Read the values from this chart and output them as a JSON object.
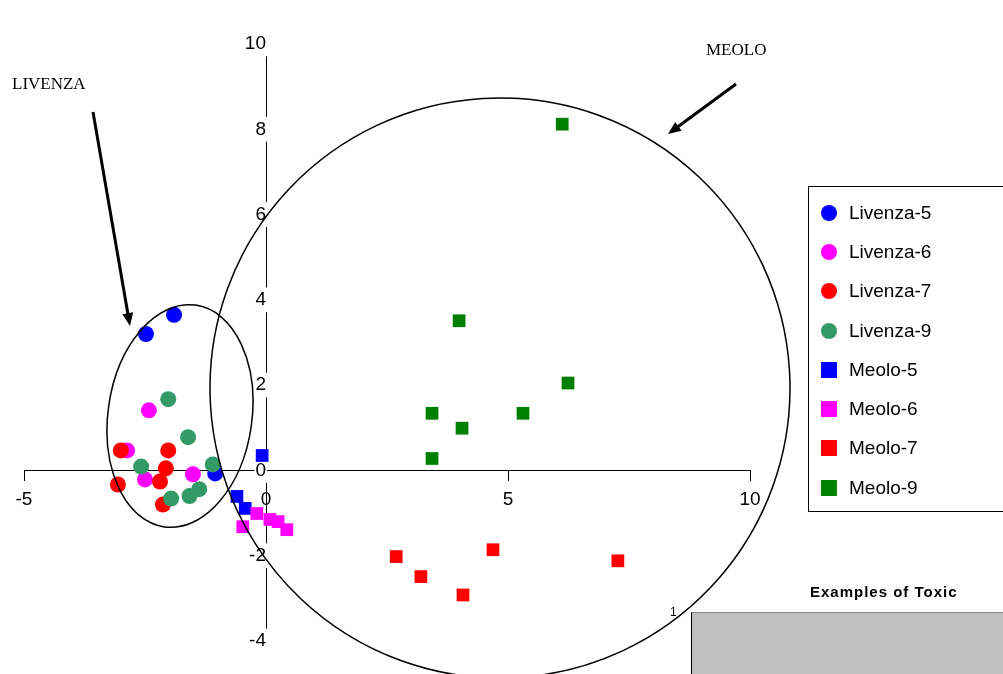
{
  "chart_data": [
    {
      "type": "scatter",
      "xlim": [
        -5,
        10
      ],
      "ylim": [
        -4,
        10
      ],
      "xticks": [
        -5,
        0,
        5,
        10
      ],
      "yticks": [
        -4,
        -2,
        0,
        2,
        4,
        6,
        8,
        10
      ],
      "grid": false,
      "legend": "right",
      "annotations": [
        "LIVENZA",
        "MEOLO"
      ],
      "series": [
        {
          "name": "Livenza-5",
          "color": "#0000ff",
          "marker": "circle",
          "x": [
            -2.48,
            -1.9,
            -1.05
          ],
          "values": [
            3.2,
            3.65,
            -0.07
          ]
        },
        {
          "name": "Livenza-6",
          "color": "#ff00ff",
          "marker": "circle",
          "x": [
            -2.42,
            -2.87,
            -2.5,
            -1.51
          ],
          "values": [
            1.41,
            0.47,
            -0.21,
            -0.09
          ]
        },
        {
          "name": "Livenza-7",
          "color": "#ff0000",
          "marker": "circle",
          "x": [
            -3.0,
            -2.02,
            -3.06,
            -2.07,
            -2.19,
            -2.13
          ],
          "values": [
            0.47,
            0.47,
            -0.33,
            0.05,
            -0.26,
            -0.8
          ]
        },
        {
          "name": "Livenza-9",
          "color": "#339966",
          "marker": "circle",
          "x": [
            -2.02,
            -1.61,
            -2.58,
            -1.1,
            -1.96,
            -1.38,
            -1.58
          ],
          "values": [
            1.67,
            0.78,
            0.09,
            0.14,
            -0.66,
            -0.44,
            -0.6
          ]
        },
        {
          "name": "Meolo-5",
          "color": "#0000ff",
          "marker": "square",
          "x": [
            -0.08,
            -0.6,
            -0.43
          ],
          "values": [
            0.35,
            -0.61,
            -0.89
          ]
        },
        {
          "name": "Meolo-6",
          "color": "#ff00ff",
          "marker": "square",
          "x": [
            -0.48,
            -0.19,
            0.08,
            0.25,
            0.43
          ],
          "values": [
            -1.32,
            -1.01,
            -1.15,
            -1.2,
            -1.39
          ]
        },
        {
          "name": "Meolo-7",
          "color": "#ff0000",
          "marker": "square",
          "x": [
            2.69,
            4.69,
            3.2,
            4.07,
            7.27
          ],
          "values": [
            -2.02,
            -1.86,
            -2.49,
            -2.92,
            -2.12
          ]
        },
        {
          "name": "Meolo-9",
          "color": "#008000",
          "marker": "square",
          "x": [
            6.12,
            3.99,
            6.24,
            3.43,
            5.31,
            4.05,
            3.43
          ],
          "values": [
            8.12,
            3.51,
            2.05,
            1.34,
            1.34,
            0.99,
            0.28
          ]
        }
      ]
    },
    {
      "type": "other",
      "title": "Examples of Toxic",
      "annotations": [
        "1"
      ]
    }
  ]
}
